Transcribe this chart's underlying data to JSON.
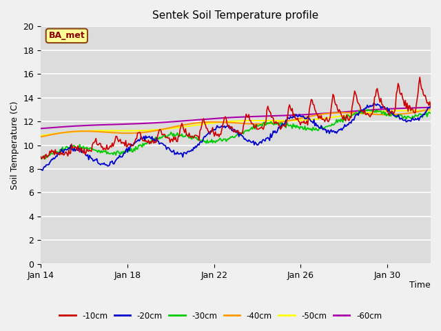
{
  "title": "Sentek Soil Temperature profile",
  "xlabel": "Time",
  "ylabel": "Soil Temperature (C)",
  "annotation": "BA_met",
  "ylim": [
    0,
    20
  ],
  "xlim": [
    0,
    18
  ],
  "xtick_positions": [
    0,
    4,
    8,
    12,
    16
  ],
  "xtick_labels": [
    "Jan 14",
    "Jan 18",
    "Jan 22",
    "Jan 26",
    "Jan 30"
  ],
  "ytick_positions": [
    0,
    2,
    4,
    6,
    8,
    10,
    12,
    14,
    16,
    18,
    20
  ],
  "bg_color": "#dcdcdc",
  "series_colors": {
    "-10cm": "#cc0000",
    "-20cm": "#0000cc",
    "-30cm": "#00cc00",
    "-40cm": "#ff9900",
    "-50cm": "#ffff00",
    "-60cm": "#aa00aa"
  },
  "legend_labels": [
    "-10cm",
    "-20cm",
    "-30cm",
    "-40cm",
    "-50cm",
    "-60cm"
  ]
}
